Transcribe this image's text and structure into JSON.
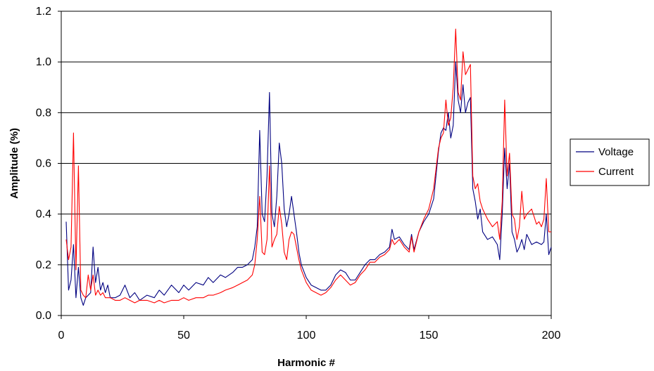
{
  "chart_data": {
    "type": "line",
    "title": "",
    "xlabel": "Harmonic #",
    "ylabel": "Amplitude (%)",
    "xlim": [
      0,
      200
    ],
    "ylim": [
      0,
      1.2
    ],
    "x_ticks": [
      0,
      50,
      100,
      150,
      200
    ],
    "x_tick_labels": [
      "0",
      "50",
      "100",
      "150",
      "200"
    ],
    "y_ticks": [
      0,
      0.2,
      0.4,
      0.6,
      0.8,
      1.0,
      1.2
    ],
    "y_tick_labels": [
      "0.0",
      "0.2",
      "0.4",
      "0.6",
      "0.8",
      "1.0",
      "1.2"
    ],
    "grid": "horizontal",
    "legend": "right",
    "series": [
      {
        "name": "Voltage",
        "color": "#000080",
        "points": [
          [
            2,
            0.37
          ],
          [
            3,
            0.1
          ],
          [
            4,
            0.14
          ],
          [
            5,
            0.28
          ],
          [
            6,
            0.07
          ],
          [
            7,
            0.19
          ],
          [
            8,
            0.07
          ],
          [
            9,
            0.04
          ],
          [
            10,
            0.07
          ],
          [
            11,
            0.08
          ],
          [
            12,
            0.09
          ],
          [
            13,
            0.27
          ],
          [
            14,
            0.13
          ],
          [
            15,
            0.19
          ],
          [
            16,
            0.1
          ],
          [
            17,
            0.13
          ],
          [
            18,
            0.09
          ],
          [
            19,
            0.12
          ],
          [
            20,
            0.07
          ],
          [
            22,
            0.07
          ],
          [
            24,
            0.08
          ],
          [
            26,
            0.12
          ],
          [
            28,
            0.07
          ],
          [
            30,
            0.09
          ],
          [
            32,
            0.06
          ],
          [
            35,
            0.08
          ],
          [
            38,
            0.07
          ],
          [
            40,
            0.1
          ],
          [
            42,
            0.08
          ],
          [
            45,
            0.12
          ],
          [
            48,
            0.09
          ],
          [
            50,
            0.12
          ],
          [
            52,
            0.1
          ],
          [
            55,
            0.13
          ],
          [
            58,
            0.12
          ],
          [
            60,
            0.15
          ],
          [
            62,
            0.13
          ],
          [
            65,
            0.16
          ],
          [
            67,
            0.15
          ],
          [
            70,
            0.17
          ],
          [
            72,
            0.19
          ],
          [
            74,
            0.19
          ],
          [
            76,
            0.2
          ],
          [
            78,
            0.22
          ],
          [
            79,
            0.27
          ],
          [
            80,
            0.35
          ],
          [
            81,
            0.73
          ],
          [
            82,
            0.4
          ],
          [
            83,
            0.37
          ],
          [
            84,
            0.55
          ],
          [
            85,
            0.88
          ],
          [
            86,
            0.4
          ],
          [
            87,
            0.35
          ],
          [
            88,
            0.47
          ],
          [
            89,
            0.68
          ],
          [
            90,
            0.6
          ],
          [
            91,
            0.42
          ],
          [
            92,
            0.35
          ],
          [
            93,
            0.4
          ],
          [
            94,
            0.47
          ],
          [
            95,
            0.4
          ],
          [
            96,
            0.33
          ],
          [
            97,
            0.25
          ],
          [
            98,
            0.2
          ],
          [
            100,
            0.15
          ],
          [
            102,
            0.12
          ],
          [
            104,
            0.11
          ],
          [
            106,
            0.1
          ],
          [
            108,
            0.1
          ],
          [
            110,
            0.12
          ],
          [
            112,
            0.16
          ],
          [
            114,
            0.18
          ],
          [
            116,
            0.17
          ],
          [
            118,
            0.14
          ],
          [
            120,
            0.14
          ],
          [
            122,
            0.17
          ],
          [
            124,
            0.2
          ],
          [
            126,
            0.22
          ],
          [
            128,
            0.22
          ],
          [
            130,
            0.24
          ],
          [
            132,
            0.25
          ],
          [
            134,
            0.27
          ],
          [
            135,
            0.34
          ],
          [
            136,
            0.3
          ],
          [
            138,
            0.31
          ],
          [
            140,
            0.28
          ],
          [
            142,
            0.26
          ],
          [
            143,
            0.32
          ],
          [
            144,
            0.26
          ],
          [
            146,
            0.33
          ],
          [
            148,
            0.37
          ],
          [
            150,
            0.4
          ],
          [
            152,
            0.46
          ],
          [
            154,
            0.65
          ],
          [
            155,
            0.72
          ],
          [
            156,
            0.74
          ],
          [
            157,
            0.73
          ],
          [
            158,
            0.8
          ],
          [
            159,
            0.7
          ],
          [
            160,
            0.75
          ],
          [
            161,
            1.0
          ],
          [
            162,
            0.85
          ],
          [
            163,
            0.8
          ],
          [
            164,
            0.91
          ],
          [
            165,
            0.8
          ],
          [
            166,
            0.84
          ],
          [
            167,
            0.86
          ],
          [
            168,
            0.5
          ],
          [
            169,
            0.45
          ],
          [
            170,
            0.38
          ],
          [
            171,
            0.42
          ],
          [
            172,
            0.33
          ],
          [
            174,
            0.3
          ],
          [
            176,
            0.31
          ],
          [
            178,
            0.28
          ],
          [
            179,
            0.22
          ],
          [
            180,
            0.4
          ],
          [
            181,
            0.66
          ],
          [
            182,
            0.5
          ],
          [
            183,
            0.6
          ],
          [
            184,
            0.33
          ],
          [
            185,
            0.3
          ],
          [
            186,
            0.25
          ],
          [
            187,
            0.27
          ],
          [
            188,
            0.3
          ],
          [
            189,
            0.26
          ],
          [
            190,
            0.32
          ],
          [
            192,
            0.28
          ],
          [
            194,
            0.29
          ],
          [
            196,
            0.28
          ],
          [
            197,
            0.29
          ],
          [
            198,
            0.4
          ],
          [
            199,
            0.24
          ],
          [
            200,
            0.27
          ]
        ]
      },
      {
        "name": "Current",
        "color": "#FF0000",
        "points": [
          [
            2,
            0.3
          ],
          [
            3,
            0.22
          ],
          [
            4,
            0.27
          ],
          [
            5,
            0.72
          ],
          [
            6,
            0.18
          ],
          [
            7,
            0.59
          ],
          [
            8,
            0.1
          ],
          [
            9,
            0.08
          ],
          [
            10,
            0.07
          ],
          [
            11,
            0.16
          ],
          [
            12,
            0.1
          ],
          [
            13,
            0.16
          ],
          [
            14,
            0.08
          ],
          [
            15,
            0.1
          ],
          [
            16,
            0.08
          ],
          [
            17,
            0.09
          ],
          [
            18,
            0.07
          ],
          [
            20,
            0.07
          ],
          [
            22,
            0.06
          ],
          [
            24,
            0.06
          ],
          [
            26,
            0.07
          ],
          [
            28,
            0.06
          ],
          [
            30,
            0.05
          ],
          [
            32,
            0.06
          ],
          [
            35,
            0.06
          ],
          [
            38,
            0.05
          ],
          [
            40,
            0.06
          ],
          [
            42,
            0.05
          ],
          [
            45,
            0.06
          ],
          [
            48,
            0.06
          ],
          [
            50,
            0.07
          ],
          [
            52,
            0.06
          ],
          [
            55,
            0.07
          ],
          [
            58,
            0.07
          ],
          [
            60,
            0.08
          ],
          [
            62,
            0.08
          ],
          [
            65,
            0.09
          ],
          [
            67,
            0.1
          ],
          [
            70,
            0.11
          ],
          [
            72,
            0.12
          ],
          [
            74,
            0.13
          ],
          [
            76,
            0.14
          ],
          [
            78,
            0.16
          ],
          [
            79,
            0.2
          ],
          [
            80,
            0.3
          ],
          [
            81,
            0.47
          ],
          [
            82,
            0.25
          ],
          [
            83,
            0.24
          ],
          [
            84,
            0.3
          ],
          [
            85,
            0.59
          ],
          [
            86,
            0.27
          ],
          [
            87,
            0.3
          ],
          [
            88,
            0.32
          ],
          [
            89,
            0.43
          ],
          [
            90,
            0.36
          ],
          [
            91,
            0.25
          ],
          [
            92,
            0.22
          ],
          [
            93,
            0.3
          ],
          [
            94,
            0.33
          ],
          [
            95,
            0.32
          ],
          [
            96,
            0.27
          ],
          [
            97,
            0.22
          ],
          [
            98,
            0.18
          ],
          [
            100,
            0.13
          ],
          [
            102,
            0.1
          ],
          [
            104,
            0.09
          ],
          [
            106,
            0.08
          ],
          [
            108,
            0.09
          ],
          [
            110,
            0.11
          ],
          [
            112,
            0.14
          ],
          [
            114,
            0.16
          ],
          [
            116,
            0.14
          ],
          [
            118,
            0.12
          ],
          [
            120,
            0.13
          ],
          [
            122,
            0.16
          ],
          [
            124,
            0.18
          ],
          [
            126,
            0.21
          ],
          [
            128,
            0.21
          ],
          [
            130,
            0.23
          ],
          [
            132,
            0.24
          ],
          [
            134,
            0.26
          ],
          [
            135,
            0.3
          ],
          [
            136,
            0.28
          ],
          [
            138,
            0.3
          ],
          [
            140,
            0.27
          ],
          [
            142,
            0.25
          ],
          [
            143,
            0.31
          ],
          [
            144,
            0.25
          ],
          [
            146,
            0.33
          ],
          [
            148,
            0.38
          ],
          [
            150,
            0.42
          ],
          [
            152,
            0.5
          ],
          [
            154,
            0.66
          ],
          [
            155,
            0.7
          ],
          [
            156,
            0.72
          ],
          [
            157,
            0.85
          ],
          [
            158,
            0.75
          ],
          [
            159,
            0.78
          ],
          [
            160,
            0.9
          ],
          [
            161,
            1.13
          ],
          [
            162,
            0.88
          ],
          [
            163,
            0.85
          ],
          [
            164,
            1.04
          ],
          [
            165,
            0.95
          ],
          [
            166,
            0.97
          ],
          [
            167,
            0.99
          ],
          [
            168,
            0.55
          ],
          [
            169,
            0.5
          ],
          [
            170,
            0.52
          ],
          [
            171,
            0.45
          ],
          [
            172,
            0.42
          ],
          [
            174,
            0.38
          ],
          [
            176,
            0.35
          ],
          [
            178,
            0.37
          ],
          [
            179,
            0.3
          ],
          [
            180,
            0.45
          ],
          [
            181,
            0.85
          ],
          [
            182,
            0.55
          ],
          [
            183,
            0.64
          ],
          [
            184,
            0.4
          ],
          [
            185,
            0.38
          ],
          [
            186,
            0.3
          ],
          [
            187,
            0.35
          ],
          [
            188,
            0.49
          ],
          [
            189,
            0.38
          ],
          [
            190,
            0.4
          ],
          [
            192,
            0.42
          ],
          [
            194,
            0.36
          ],
          [
            195,
            0.37
          ],
          [
            196,
            0.35
          ],
          [
            197,
            0.38
          ],
          [
            198,
            0.54
          ],
          [
            199,
            0.33
          ],
          [
            200,
            0.33
          ]
        ]
      }
    ]
  }
}
